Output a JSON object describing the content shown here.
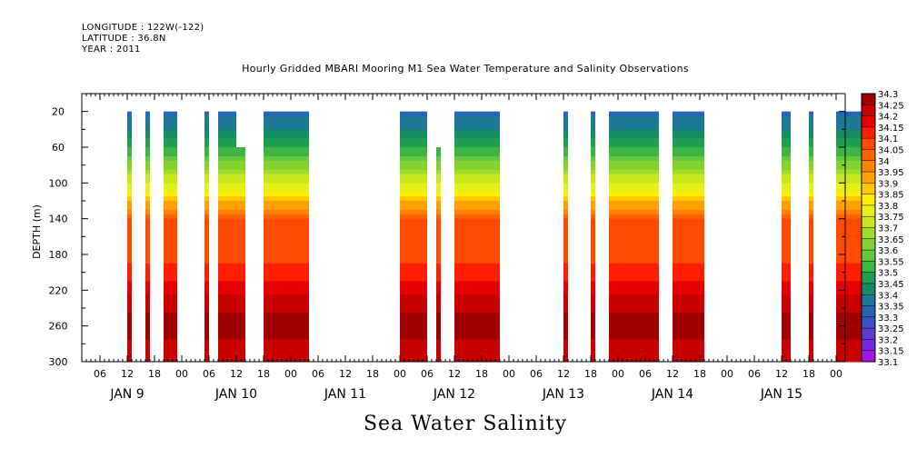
{
  "header": {
    "longitude": "LONGITUDE : 122W(-122)",
    "latitude": "LATITUDE : 36.8N",
    "year": "YEAR : 2011"
  },
  "chart_data": {
    "type": "heatmap",
    "title": "Hourly Gridded MBARI Mooring M1 Sea Water Temperature and Salinity Observations",
    "bottom_title": "Sea Water Salinity",
    "xlabel": "",
    "ylabel": "DEPTH (m)",
    "x_range_hours": [
      0,
      168
    ],
    "x_tick_labels": [
      "06",
      "12",
      "18",
      "00",
      "06",
      "12",
      "18",
      "00",
      "06",
      "12",
      "18",
      "00",
      "06",
      "12",
      "18",
      "00",
      "06",
      "12",
      "18",
      "00",
      "06",
      "12",
      "18",
      "00",
      "06",
      "12",
      "18",
      "00"
    ],
    "day_labels": [
      "JAN  9",
      "JAN 10",
      "JAN 11",
      "JAN 12",
      "JAN 13",
      "JAN 14",
      "JAN 15"
    ],
    "y_range": [
      0,
      300
    ],
    "y_ticks": [
      20,
      60,
      100,
      140,
      180,
      220,
      260,
      300
    ],
    "colorbar": {
      "levels": [
        "34.3",
        "34.25",
        "34.2",
        "34.15",
        "34.1",
        "34.05",
        "34",
        "33.95",
        "33.9",
        "33.85",
        "33.8",
        "33.75",
        "33.7",
        "33.65",
        "33.6",
        "33.55",
        "33.5",
        "33.45",
        "33.4",
        "33.35",
        "33.3",
        "33.25",
        "33.2",
        "33.15",
        "33.1"
      ],
      "colors": [
        "#a00000",
        "#c80000",
        "#e60000",
        "#ff1e00",
        "#ff4a00",
        "#ff6400",
        "#ff8200",
        "#ffa000",
        "#ffc800",
        "#ffee00",
        "#e6f014",
        "#c8e61e",
        "#a0dc28",
        "#82d232",
        "#64c83c",
        "#3cb446",
        "#1ea050",
        "#148c64",
        "#1e7896",
        "#2864b4",
        "#3c50c8",
        "#5a3cd2",
        "#7828dc",
        "#a014e6",
        "#c800f0"
      ]
    },
    "data_blocks_hours": [
      [
        12,
        13,
        20
      ],
      [
        16,
        17,
        20
      ],
      [
        20,
        23,
        20
      ],
      [
        29,
        30,
        20
      ],
      [
        32,
        36,
        20
      ],
      [
        36,
        38,
        60
      ],
      [
        42,
        52,
        20
      ],
      [
        72,
        78,
        20
      ],
      [
        80,
        81,
        60
      ],
      [
        84,
        94,
        20
      ],
      [
        108,
        109,
        20
      ],
      [
        114,
        115,
        20
      ],
      [
        118,
        129,
        20
      ],
      [
        132,
        139,
        20
      ],
      [
        156,
        158,
        20
      ],
      [
        162,
        163,
        20
      ],
      [
        168,
        175,
        20
      ]
    ],
    "profile_depth": [
      20,
      40,
      60,
      80,
      100,
      120,
      140,
      160,
      180,
      200,
      220,
      240,
      260,
      280,
      300
    ],
    "profile_salinity": [
      33.32,
      33.4,
      33.5,
      33.62,
      33.75,
      33.88,
      34.05,
      34.08,
      34.08,
      34.12,
      34.18,
      34.24,
      34.27,
      34.24,
      34.2
    ]
  }
}
